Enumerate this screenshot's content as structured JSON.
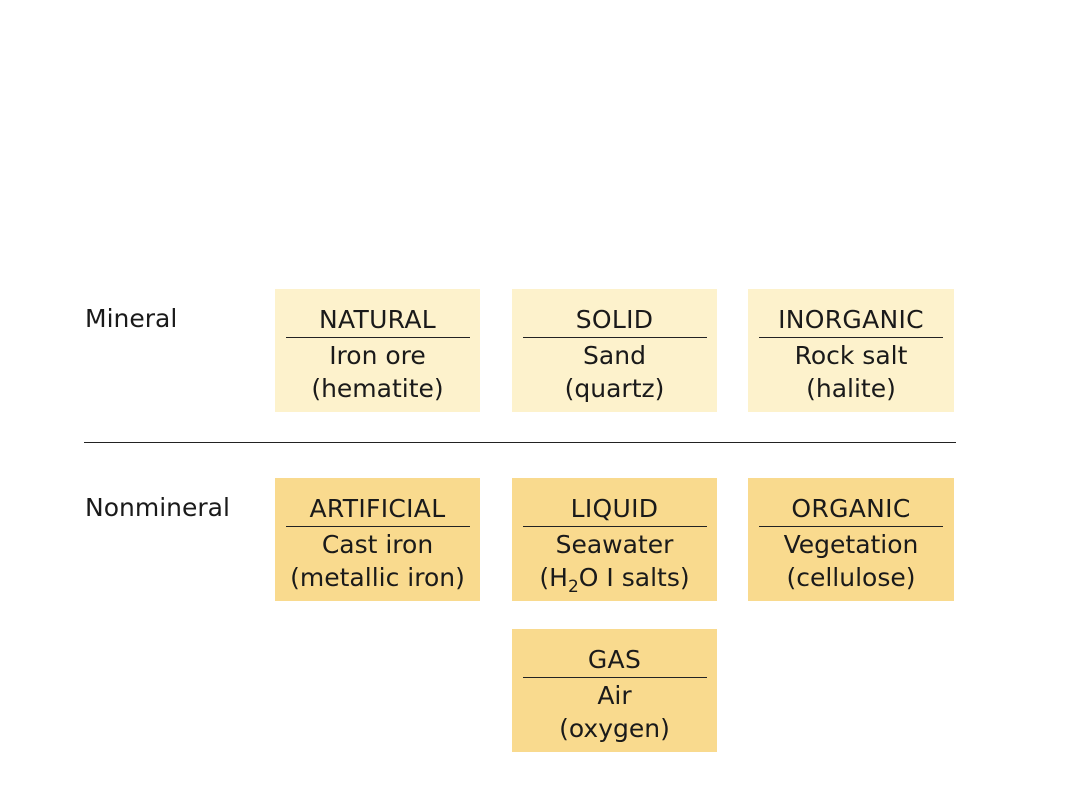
{
  "rows": {
    "mineral_label": "Mineral",
    "nonmineral_label": "Nonmineral"
  },
  "boxes": {
    "natural": {
      "heading": "NATURAL",
      "line1": "Iron ore",
      "line2": "(hematite)"
    },
    "solid": {
      "heading": "SOLID",
      "line1": "Sand",
      "line2": "(quartz)"
    },
    "inorganic": {
      "heading": "INORGANIC",
      "line1": "Rock salt",
      "line2": "(halite)"
    },
    "artificial": {
      "heading": "ARTIFICIAL",
      "line1": "Cast iron",
      "line2": "(metallic iron)"
    },
    "liquid": {
      "heading": "LIQUID",
      "line1": "Seawater",
      "line2_pre": "(H",
      "line2_sub": "2",
      "line2_post": "O I salts)"
    },
    "organic": {
      "heading": "ORGANIC",
      "line1": "Vegetation",
      "line2": "(cellulose)"
    },
    "gas": {
      "heading": "GAS",
      "line1": "Air",
      "line2": "(oxygen)"
    }
  },
  "colors": {
    "mineral_fill": "#fdf2cc",
    "nonmineral_fill": "#f9da8e",
    "text": "#1a1a1a",
    "rule": "#222222"
  }
}
